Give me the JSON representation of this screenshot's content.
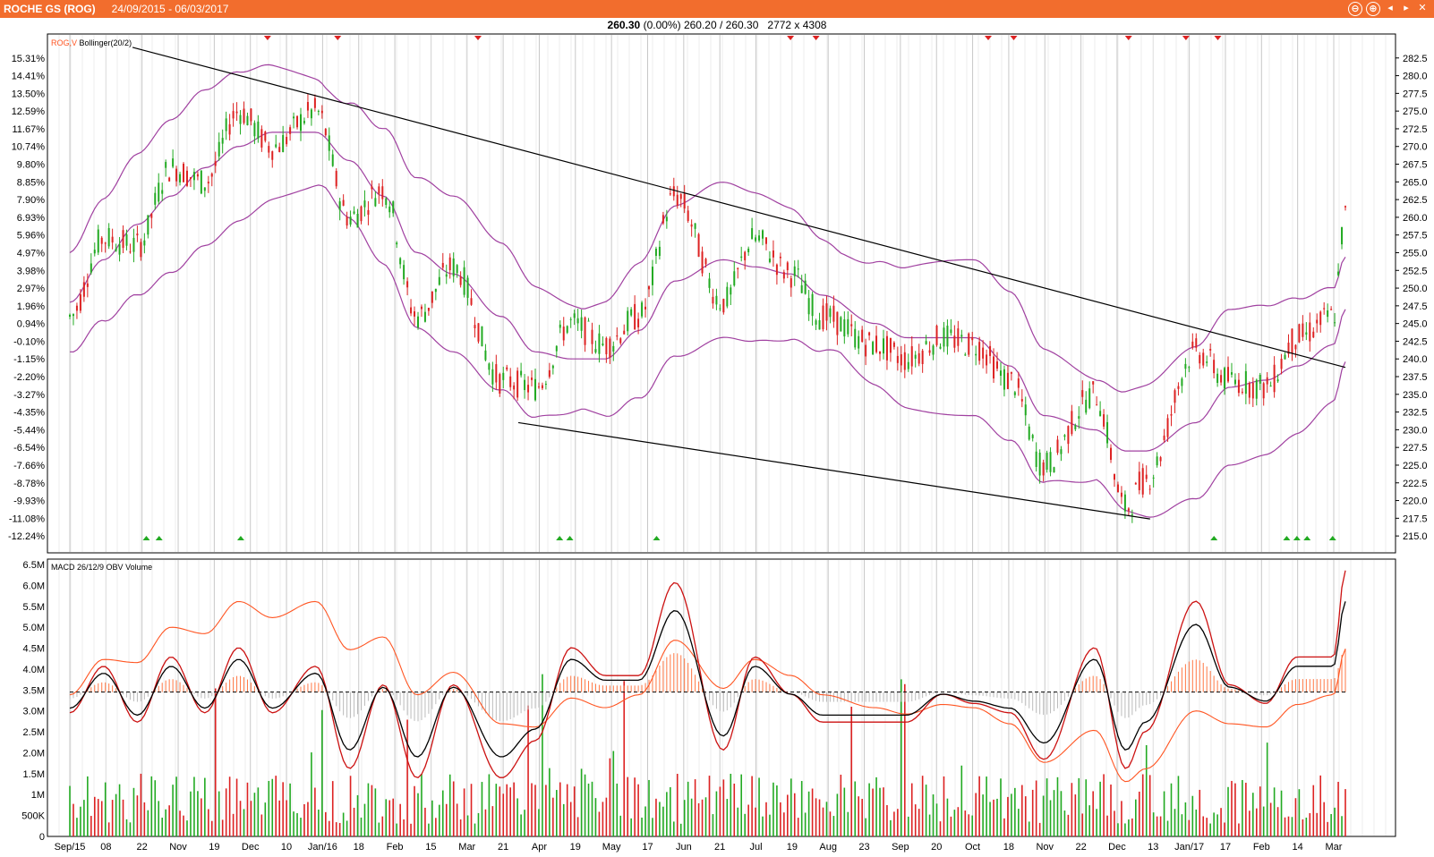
{
  "header": {
    "symbol": "ROCHE GS (ROG)",
    "date_range": "24/09/2015 - 06/03/2017",
    "controls": [
      "⊖",
      "⊕",
      "◂",
      "▸",
      "✕"
    ]
  },
  "quote": {
    "last": "260.30",
    "change": "(0.00%)",
    "bid_ask": "260.20 / 260.30",
    "size": "2772 x 4308"
  },
  "chart_data": [
    {
      "type": "candlestick",
      "panel": "price",
      "legend": {
        "symbol": "ROG,V",
        "indicator": "Bollinger(20/2)"
      },
      "y_right_ticks": [
        "282.5",
        "280.0",
        "277.5",
        "275.0",
        "272.5",
        "270.0",
        "267.5",
        "265.0",
        "262.5",
        "260.0",
        "257.5",
        "255.0",
        "252.5",
        "250.0",
        "247.5",
        "245.0",
        "242.5",
        "240.0",
        "237.5",
        "235.0",
        "232.5",
        "230.0",
        "227.5",
        "225.0",
        "222.5",
        "220.0",
        "217.5",
        "215.0"
      ],
      "y_left_ticks": [
        "15.31%",
        "14.41%",
        "13.50%",
        "12.59%",
        "11.67%",
        "10.74%",
        "9.80%",
        "8.85%",
        "7.90%",
        "6.93%",
        "5.96%",
        "4.97%",
        "3.98%",
        "2.97%",
        "1.96%",
        "0.94%",
        "-0.10%",
        "-1.15%",
        "-2.20%",
        "-3.27%",
        "-4.35%",
        "-5.44%",
        "-6.54%",
        "-7.66%",
        "-8.78%",
        "-9.93%",
        "-11.08%",
        "-12.24%"
      ],
      "ylim": [
        213.5,
        285
      ],
      "x": [
        "2015-09-24",
        "2015-10-08",
        "2015-10-22",
        "2015-11-05",
        "2015-11-19",
        "2015-12-03",
        "2015-12-17",
        "2016-01-04",
        "2016-01-18",
        "2016-02-01",
        "2016-02-15",
        "2016-03-01",
        "2016-03-21",
        "2016-04-04",
        "2016-04-19",
        "2016-05-03",
        "2016-05-17",
        "2016-06-01",
        "2016-06-21",
        "2016-07-04",
        "2016-07-19",
        "2016-08-01",
        "2016-08-23",
        "2016-09-05",
        "2016-09-20",
        "2016-10-03",
        "2016-10-18",
        "2016-11-01",
        "2016-11-22",
        "2016-12-05",
        "2016-12-13",
        "2017-01-03",
        "2017-01-17",
        "2017-02-01",
        "2017-02-14",
        "2017-03-01",
        "2017-03-06"
      ],
      "close": [
        246,
        257,
        256,
        267,
        265,
        275,
        270,
        275,
        260,
        264,
        246,
        253,
        237,
        236,
        245,
        242,
        246,
        263,
        248,
        257,
        252,
        246,
        242,
        240,
        243,
        242,
        237,
        225,
        235,
        219,
        223,
        241,
        237,
        236,
        243,
        246,
        260.3
      ],
      "bollinger_mid": [
        248,
        254,
        259,
        263,
        267,
        270,
        272,
        272,
        268,
        263,
        255,
        252,
        246,
        241,
        240,
        240,
        244,
        251,
        254,
        253,
        252,
        249,
        245,
        243,
        243,
        243,
        239,
        232,
        230,
        227,
        227,
        231,
        236,
        237,
        239,
        242,
        247
      ],
      "trendlines": [
        {
          "name": "resistance",
          "from": [
            "2015-10-20",
            284
          ],
          "to": [
            "2017-03-06",
            238.8
          ]
        },
        {
          "name": "support",
          "from": [
            "2016-03-28",
            231
          ],
          "to": [
            "2016-12-15",
            217.4
          ]
        }
      ]
    },
    {
      "type": "line+bar",
      "panel": "indicators",
      "legend": {
        "macd": "MACD 26/12/9",
        "obv": "OBV",
        "volume": "Volume"
      },
      "y_ticks": [
        "6.5M",
        "6.0M",
        "5.5M",
        "5.0M",
        "4.5M",
        "4.0M",
        "3.5M",
        "3.0M",
        "2.5M",
        "2.0M",
        "1.5M",
        "1M",
        "500K",
        "0"
      ],
      "ylim": [
        0,
        6.5
      ]
    }
  ],
  "x_axis_labels": [
    "Sep/15",
    "08",
    "22",
    "Nov",
    "19",
    "Dec",
    "10",
    "Jan/16",
    "18",
    "Feb",
    "15",
    "Mar",
    "21",
    "Apr",
    "19",
    "May",
    "17",
    "Jun",
    "21",
    "Jul",
    "19",
    "Aug",
    "23",
    "Sep",
    "20",
    "Oct",
    "18",
    "Nov",
    "22",
    "Dec",
    "13",
    "Jan/17",
    "17",
    "Feb",
    "14",
    "Mar"
  ],
  "colors": {
    "title_bar": "#f26d2d",
    "up": "#22aa22",
    "down": "#dd2222",
    "bollinger": "#a040a0",
    "macd": "#cc1111",
    "signal": "#000000",
    "obv": "#ff5522",
    "grid": "#c8c8c8"
  }
}
